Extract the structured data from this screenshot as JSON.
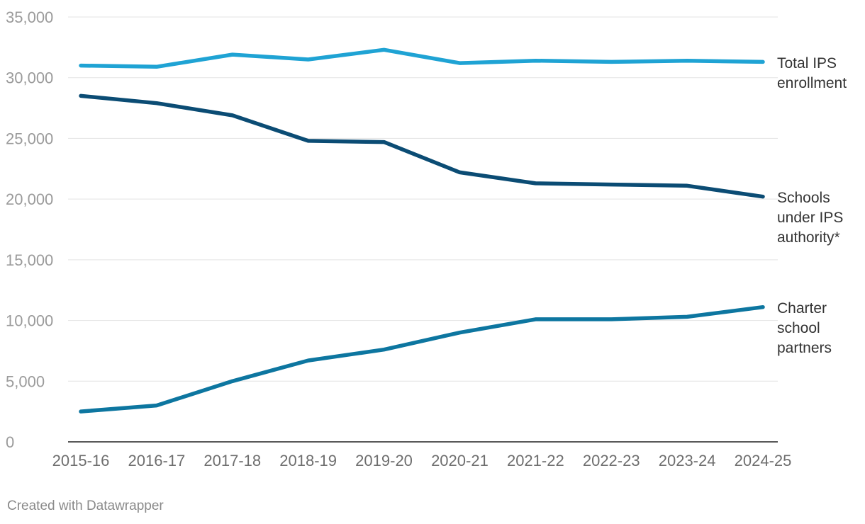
{
  "chart_data": {
    "type": "line",
    "title": "",
    "xlabel": "",
    "ylabel": "",
    "x": [
      "2015-16",
      "2016-17",
      "2017-18",
      "2018-19",
      "2019-20",
      "2020-21",
      "2021-22",
      "2022-23",
      "2023-24",
      "2024-25"
    ],
    "y_ticks": [
      "0",
      "5,000",
      "10,000",
      "15,000",
      "20,000",
      "25,000",
      "30,000",
      "35,000"
    ],
    "ylim": [
      0,
      35000
    ],
    "grid": true,
    "series": [
      {
        "name": "Total IPS enrollment",
        "label_lines": [
          "Total IPS",
          "enrollment"
        ],
        "color": "#1fa3d4",
        "values": [
          31000,
          30900,
          31900,
          31500,
          32300,
          31200,
          31400,
          31300,
          31400,
          31300
        ]
      },
      {
        "name": "Schools under IPS authority*",
        "label_lines": [
          "Schools",
          "under IPS",
          "authority*"
        ],
        "color": "#0b4c74",
        "values": [
          28500,
          27900,
          26900,
          24800,
          24700,
          22200,
          21300,
          21200,
          21100,
          20200
        ]
      },
      {
        "name": "Charter school partners",
        "label_lines": [
          "Charter",
          "school",
          "partners"
        ],
        "color": "#0d76a0",
        "values": [
          2500,
          3000,
          5000,
          6700,
          7600,
          9000,
          10100,
          10100,
          10300,
          11100
        ]
      }
    ]
  },
  "footer": {
    "credit": "Created with Datawrapper"
  }
}
